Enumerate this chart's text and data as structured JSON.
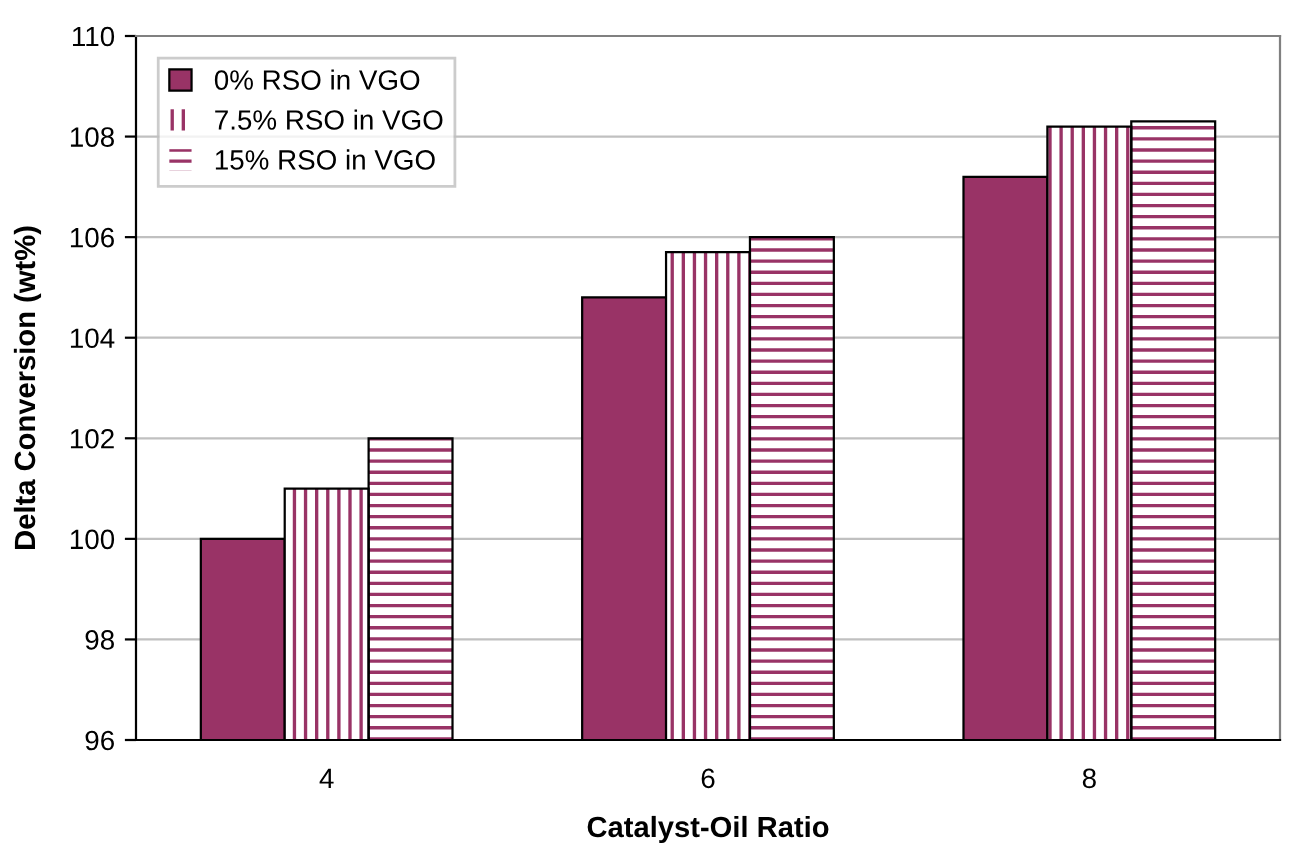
{
  "chart_data": {
    "type": "bar",
    "xlabel": "Catalyst-Oil Ratio",
    "ylabel": "Delta Conversion (wt%)",
    "categories": [
      "4",
      "6",
      "8"
    ],
    "series": [
      {
        "name": "0% RSO in VGO",
        "color": "#993366",
        "values": [
          100,
          104.8,
          107.2
        ]
      },
      {
        "name": "7.5% RSO in VGO",
        "color": "#993366",
        "values": [
          101,
          105.7,
          108.2
        ]
      },
      {
        "name": "15% RSO in VGO",
        "color": "#993366",
        "values": [
          102,
          106.0,
          108.3
        ]
      }
    ],
    "ylim": [
      96,
      110
    ],
    "yticks": [
      96,
      98,
      100,
      102,
      104,
      106,
      108,
      110
    ],
    "grid": "y",
    "legend": "top left"
  }
}
